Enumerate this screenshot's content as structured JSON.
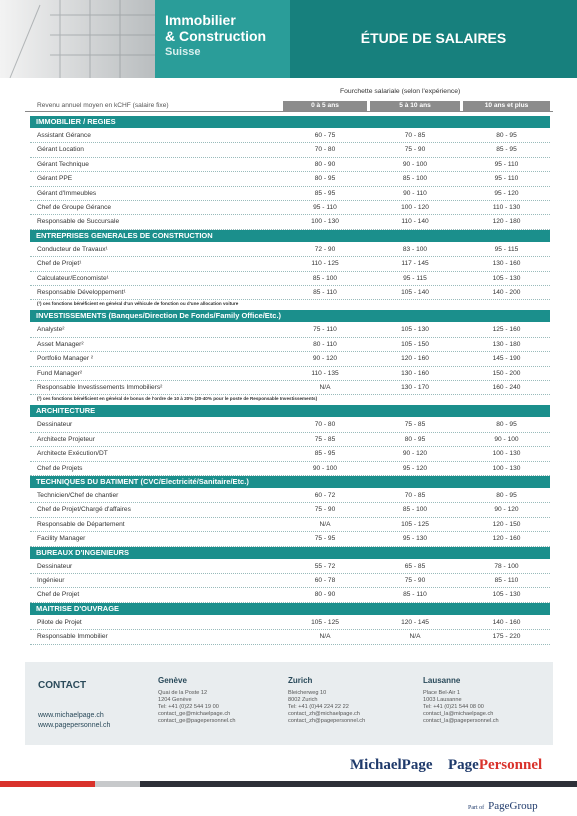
{
  "header": {
    "brand": [
      "Immobilier",
      "& Construction",
      "Suisse"
    ],
    "title": "ÉTUDE DE SALAIRES"
  },
  "table": {
    "range_title": "Fourchette salariale (selon l'expérience)",
    "row_label_header": "Revenu annuel moyen en kCHF (salaire fixe)",
    "columns": [
      "0 à 5 ans",
      "5 à 10 ans",
      "10 ans et plus"
    ],
    "sections": [
      {
        "title": "IMMOBILIER / REGIES",
        "rows": [
          [
            "Assistant Gérance",
            "60 - 75",
            "70 - 85",
            "80 - 95"
          ],
          [
            "Gérant Location",
            "70 - 80",
            "75 - 90",
            "85 - 95"
          ],
          [
            "Gérant Technique",
            "80 - 90",
            "90 - 100",
            "95 - 110"
          ],
          [
            "Gérant PPE",
            "80 - 95",
            "85 - 100",
            "95 - 110"
          ],
          [
            "Gérant d'Immeubles",
            "85 - 95",
            "90 - 110",
            "95 - 120"
          ],
          [
            "Chef de Groupe Gérance",
            "95 - 110",
            "100 - 120",
            "110 - 130"
          ],
          [
            "Responsable de Succursale",
            "100 - 130",
            "110 - 140",
            "120 - 180"
          ]
        ]
      },
      {
        "title": "ENTREPRISES GENERALES DE CONSTRUCTION",
        "rows": [
          [
            "Conducteur de Travaux¹",
            "72 - 90",
            "83 - 100",
            "95 - 115"
          ],
          [
            "Chef de Projet¹",
            "110 - 125",
            "117 - 145",
            "130 - 160"
          ],
          [
            "Calculateur/Economiste¹",
            "85 - 100",
            "95 - 115",
            "105 - 130"
          ],
          [
            "Responsable Développement¹",
            "85 - 110",
            "105 - 140",
            "140 - 200"
          ]
        ],
        "note": "(¹) ces fonctions bénéficient en général d'un véhicule de fonction ou d'une allocation voiture"
      },
      {
        "title": "INVESTISSEMENTS (Banques/Direction De Fonds/Family Office/Etc.)",
        "rows": [
          [
            "Analyste²",
            "75 - 110",
            "105 - 130",
            "125 - 160"
          ],
          [
            "Asset Manager²",
            "80 - 110",
            "105 - 150",
            "130 - 180"
          ],
          [
            "Portfolio Manager ²",
            "90 - 120",
            "120 - 160",
            "145 - 190"
          ],
          [
            "Fund Manager²",
            "110 - 135",
            "130 - 160",
            "150 - 200"
          ],
          [
            "Responsable Investissements Immobiliers²",
            "N/A",
            "130 - 170",
            "160 - 240"
          ]
        ],
        "note": "(²) ces fonctions bénéficient en général de bonus de l'ordre de 10 à 20% (20-40% pour le poste de Responsable Investissements)"
      },
      {
        "title": "ARCHITECTURE",
        "rows": [
          [
            "Dessinateur",
            "70 - 80",
            "75 - 85",
            "80 - 95"
          ],
          [
            "Architecte Projeteur",
            "75 - 85",
            "80 - 95",
            "90 - 100"
          ],
          [
            "Architecte Exécution/DT",
            "85 - 95",
            "90 - 120",
            "100 - 130"
          ],
          [
            "Chef de Projets",
            "90 - 100",
            "95 - 120",
            "100 - 130"
          ]
        ]
      },
      {
        "title": "TECHNIQUES DU BATIMENT (CVC/Electricité/Sanitaire/Etc.)",
        "rows": [
          [
            "Technicien/Chef de chantier",
            "60 - 72",
            "70 - 85",
            "80 - 95"
          ],
          [
            "Chef de Projet/Chargé d'affaires",
            "75 - 90",
            "85 - 100",
            "90 - 120"
          ],
          [
            "Responsable de Département",
            "N/A",
            "105 - 125",
            "120 - 150"
          ],
          [
            "Facility Manager",
            "75 - 95",
            "95 - 130",
            "120 - 160"
          ]
        ]
      },
      {
        "title": "BUREAUX D'INGENIEURS",
        "rows": [
          [
            "Dessinateur",
            "55 - 72",
            "65 - 85",
            "78 - 100"
          ],
          [
            "Ingénieur",
            "60 - 78",
            "75 - 90",
            "85 - 110"
          ],
          [
            "Chef de Projet",
            "80 - 90",
            "85 - 110",
            "105 - 130"
          ]
        ]
      },
      {
        "title": "MAITRISE D'OUVRAGE",
        "rows": [
          [
            "Pilote de Projet",
            "105 - 125",
            "120 - 145",
            "140 - 160"
          ],
          [
            "Responsable Immobilier",
            "N/A",
            "N/A",
            "175 - 220"
          ]
        ]
      }
    ]
  },
  "contact": {
    "title": "CONTACT",
    "websites": [
      "www.michaelpage.ch",
      "www.pagepersonnel.ch"
    ],
    "offices": [
      {
        "city": "Genève",
        "lines": [
          "Quai de la Poste 12",
          "1204 Genève",
          "Tel: +41 (0)22 544 19 00",
          "contact_ge@michaelpage.ch",
          "contact_ge@pagepersonnel.ch"
        ]
      },
      {
        "city": "Zurich",
        "lines": [
          "Bleicherweg 10",
          "8002 Zurich",
          "Tel: +41 (0)44 224 22 22",
          "contact_zh@michaelpage.ch",
          "contact_zh@pagepersonnel.ch"
        ]
      },
      {
        "city": "Lausanne",
        "lines": [
          "Place Bel-Air 1",
          "1003 Lausanne",
          "Tel: +41 (0)21 544 08 00",
          "contact_la@michaelpage.ch",
          "contact_la@pagepersonnel.ch"
        ]
      }
    ]
  },
  "footer": {
    "logos": [
      [
        "Michael",
        "Page"
      ],
      [
        "Page",
        "Personnel"
      ]
    ],
    "part_of": [
      "Part of",
      "PageGroup"
    ]
  }
}
